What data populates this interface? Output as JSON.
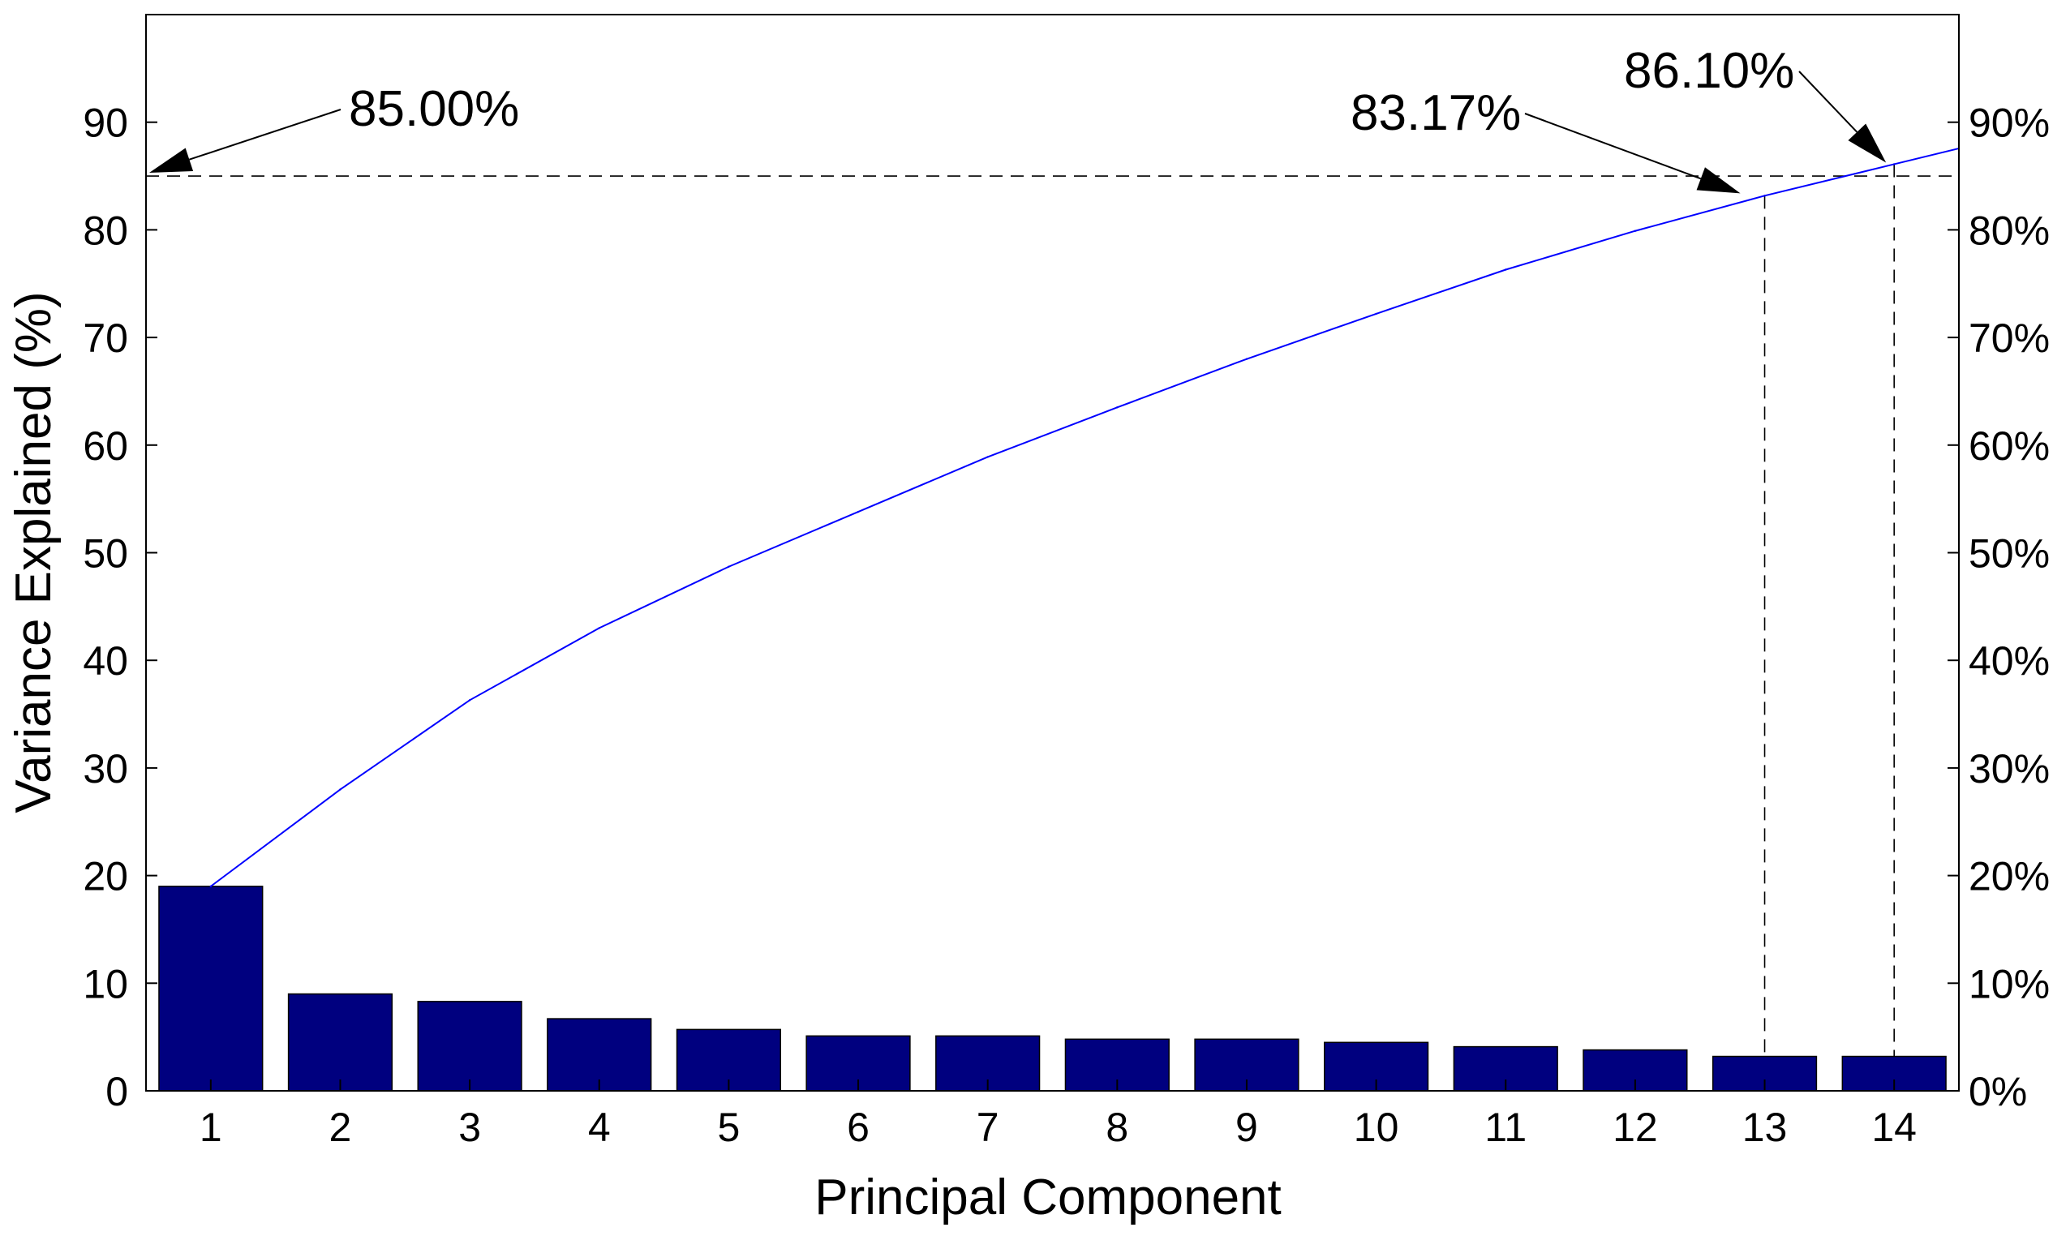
{
  "chart_data": {
    "type": "bar",
    "title": "",
    "xlabel": "Principal Component",
    "ylabel": "Variance Explained (%)",
    "categories": [
      "1",
      "2",
      "3",
      "4",
      "5",
      "6",
      "7",
      "8",
      "9",
      "10",
      "11",
      "12",
      "13",
      "14"
    ],
    "ylim": [
      0,
      100
    ],
    "left_ticks": [
      "0",
      "10",
      "20",
      "30",
      "40",
      "50",
      "60",
      "70",
      "80",
      "90"
    ],
    "right_ticks": [
      "0%",
      "10%",
      "20%",
      "30%",
      "40%",
      "50%",
      "60%",
      "70%",
      "80%",
      "90%"
    ],
    "series": [
      {
        "type": "bar",
        "values": [
          19.0,
          9.0,
          8.3,
          6.7,
          5.7,
          5.1,
          5.1,
          4.8,
          4.8,
          4.5,
          4.1,
          3.8,
          3.2,
          3.2
        ],
        "color": "#00007f"
      },
      {
        "type": "line",
        "values": [
          19.0,
          28.0,
          36.3,
          43.0,
          48.7,
          53.8,
          58.9,
          63.5,
          68.0,
          72.2,
          76.3,
          79.9,
          83.17,
          86.1
        ],
        "color": "#0000ff"
      }
    ],
    "reference": {
      "threshold": 85,
      "component_a": 13,
      "component_b": 14
    },
    "annotations": [
      {
        "text": "85.00%"
      },
      {
        "text": "83.17%"
      },
      {
        "text": "86.10%"
      }
    ]
  }
}
